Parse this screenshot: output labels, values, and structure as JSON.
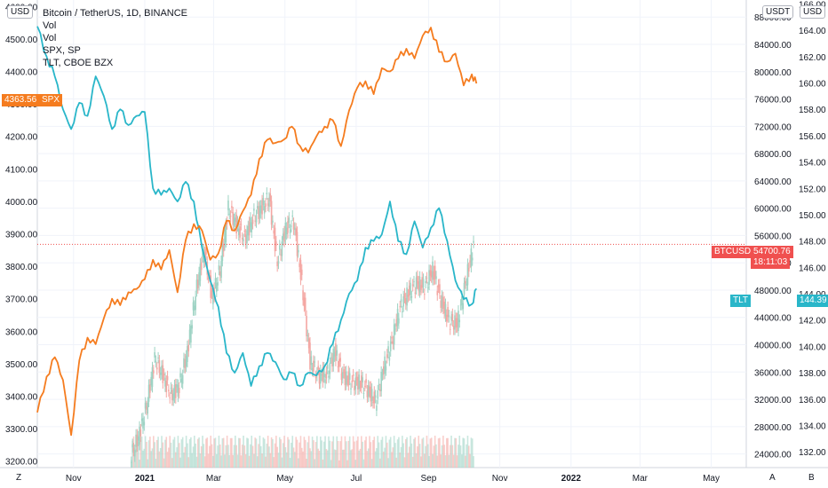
{
  "header": {
    "title": "Bitcoin / TetherUS, 1D, BINANCE",
    "legend": [
      "Vol",
      "Vol",
      "SPX, SP",
      "TLT, CBOE BZX"
    ],
    "left_currency": "USD",
    "right_currency": "USDT",
    "right2_currency": "USD"
  },
  "badges": {
    "spx_value": "4363.56",
    "spx_label": "SPX",
    "btc_label": "BTCUSDT",
    "btc_value": "54700.76",
    "btc_countdown": "18:11:03",
    "tlt_label": "TLT",
    "tlt_value": "144.39"
  },
  "bottom_bar": {
    "left": "Z",
    "mid": "A",
    "right": "B"
  },
  "colors": {
    "spx": "#f57c1f",
    "tlt": "#29b6c9",
    "candle_up": "#9ed3c4",
    "candle_down": "#f4a7a3",
    "btc_badge": "#f0504f",
    "spx_badge": "#f57c1f",
    "tlt_badge": "#29b6c9",
    "grid": "#f0f3fa"
  },
  "chart_data": {
    "type": "line",
    "x_tick_labels": [
      "Nov",
      "2021",
      "Mar",
      "May",
      "Jul",
      "Sep",
      "Nov",
      "2022",
      "Mar",
      "May"
    ],
    "x_start": "2020-10-01",
    "x_end": "2022-05-31",
    "left_axis": {
      "label": "SPX",
      "ticks": [
        "4600.00",
        "4500.00",
        "4400.00",
        "4300.00",
        "4200.00",
        "4100.00",
        "4000.00",
        "3900.00",
        "3800.00",
        "3700.00",
        "3600.00",
        "3500.00",
        "3400.00",
        "3300.00",
        "3200.00"
      ],
      "ylim": [
        3180,
        4620
      ]
    },
    "right_axis": {
      "label": "BTCUSDT",
      "ticks": [
        "88000.00",
        "84000.00",
        "80000.00",
        "76000.00",
        "72000.00",
        "68000.00",
        "64000.00",
        "60000.00",
        "56000.00",
        "52000.00",
        "48000.00",
        "44000.00",
        "40000.00",
        "36000.00",
        "32000.00",
        "28000.00",
        "24000.00"
      ],
      "ylim": [
        22000,
        90500
      ]
    },
    "right2_axis": {
      "label": "TLT",
      "ticks": [
        "166.00",
        "164.00",
        "162.00",
        "160.00",
        "158.00",
        "156.00",
        "154.00",
        "152.00",
        "150.00",
        "148.00",
        "146.00",
        "144.00",
        "142.00",
        "140.00",
        "138.00",
        "136.00",
        "134.00",
        "132.00"
      ],
      "ylim": [
        130.8,
        166.3
      ]
    },
    "series": [
      {
        "name": "SPX, SP",
        "axis": "left",
        "points": [
          [
            "2020-10-01",
            3350
          ],
          [
            "2020-10-09",
            3460
          ],
          [
            "2020-10-16",
            3520
          ],
          [
            "2020-10-23",
            3450
          ],
          [
            "2020-10-30",
            3280
          ],
          [
            "2020-11-06",
            3510
          ],
          [
            "2020-11-13",
            3580
          ],
          [
            "2020-11-20",
            3560
          ],
          [
            "2020-11-27",
            3640
          ],
          [
            "2020-12-04",
            3700
          ],
          [
            "2020-12-11",
            3680
          ],
          [
            "2020-12-18",
            3720
          ],
          [
            "2020-12-25",
            3730
          ],
          [
            "2021-01-01",
            3760
          ],
          [
            "2021-01-08",
            3820
          ],
          [
            "2021-01-15",
            3790
          ],
          [
            "2021-01-22",
            3850
          ],
          [
            "2021-01-29",
            3720
          ],
          [
            "2021-02-05",
            3880
          ],
          [
            "2021-02-12",
            3930
          ],
          [
            "2021-02-19",
            3910
          ],
          [
            "2021-02-26",
            3820
          ],
          [
            "2021-03-05",
            3840
          ],
          [
            "2021-03-12",
            3940
          ],
          [
            "2021-03-19",
            3910
          ],
          [
            "2021-03-26",
            3970
          ],
          [
            "2021-04-02",
            4020
          ],
          [
            "2021-04-09",
            4130
          ],
          [
            "2021-04-16",
            4190
          ],
          [
            "2021-04-23",
            4180
          ],
          [
            "2021-04-30",
            4190
          ],
          [
            "2021-05-07",
            4230
          ],
          [
            "2021-05-14",
            4170
          ],
          [
            "2021-05-21",
            4150
          ],
          [
            "2021-05-28",
            4200
          ],
          [
            "2021-06-04",
            4230
          ],
          [
            "2021-06-11",
            4250
          ],
          [
            "2021-06-18",
            4170
          ],
          [
            "2021-06-25",
            4280
          ],
          [
            "2021-07-02",
            4350
          ],
          [
            "2021-07-09",
            4370
          ],
          [
            "2021-07-16",
            4330
          ],
          [
            "2021-07-23",
            4410
          ],
          [
            "2021-07-30",
            4400
          ],
          [
            "2021-08-06",
            4440
          ],
          [
            "2021-08-13",
            4470
          ],
          [
            "2021-08-20",
            4440
          ],
          [
            "2021-08-27",
            4510
          ],
          [
            "2021-09-03",
            4535
          ],
          [
            "2021-09-10",
            4460
          ],
          [
            "2021-09-17",
            4430
          ],
          [
            "2021-09-24",
            4455
          ],
          [
            "2021-10-01",
            4357
          ],
          [
            "2021-10-08",
            4391
          ],
          [
            "2021-10-12",
            4363
          ]
        ]
      },
      {
        "name": "TLT, CBOE BZX",
        "axis": "right2",
        "points": [
          [
            "2020-10-01",
            164.3
          ],
          [
            "2020-10-09",
            162.0
          ],
          [
            "2020-10-16",
            160.5
          ],
          [
            "2020-10-23",
            158.0
          ],
          [
            "2020-10-30",
            156.5
          ],
          [
            "2020-11-06",
            158.5
          ],
          [
            "2020-11-13",
            157.5
          ],
          [
            "2020-11-20",
            160.5
          ],
          [
            "2020-11-27",
            159.0
          ],
          [
            "2020-12-04",
            156.5
          ],
          [
            "2020-12-11",
            158.0
          ],
          [
            "2020-12-18",
            156.8
          ],
          [
            "2020-12-25",
            157.5
          ],
          [
            "2021-01-01",
            157.8
          ],
          [
            "2021-01-08",
            152.0
          ],
          [
            "2021-01-15",
            151.5
          ],
          [
            "2021-01-22",
            152.0
          ],
          [
            "2021-01-29",
            151.0
          ],
          [
            "2021-02-05",
            152.5
          ],
          [
            "2021-02-12",
            151.0
          ],
          [
            "2021-02-19",
            147.5
          ],
          [
            "2021-02-26",
            145.0
          ],
          [
            "2021-03-05",
            143.0
          ],
          [
            "2021-03-12",
            139.5
          ],
          [
            "2021-03-19",
            138.0
          ],
          [
            "2021-03-26",
            139.5
          ],
          [
            "2021-04-02",
            137.0
          ],
          [
            "2021-04-09",
            138.5
          ],
          [
            "2021-04-16",
            139.5
          ],
          [
            "2021-04-23",
            138.8
          ],
          [
            "2021-04-30",
            137.5
          ],
          [
            "2021-05-07",
            138.0
          ],
          [
            "2021-05-14",
            137.0
          ],
          [
            "2021-05-21",
            138.0
          ],
          [
            "2021-05-28",
            137.8
          ],
          [
            "2021-06-04",
            138.5
          ],
          [
            "2021-06-11",
            140.2
          ],
          [
            "2021-06-18",
            142.0
          ],
          [
            "2021-06-25",
            144.0
          ],
          [
            "2021-07-02",
            145.0
          ],
          [
            "2021-07-09",
            147.5
          ],
          [
            "2021-07-16",
            148.0
          ],
          [
            "2021-07-23",
            148.5
          ],
          [
            "2021-07-30",
            151.0
          ],
          [
            "2021-08-06",
            148.0
          ],
          [
            "2021-08-13",
            147.0
          ],
          [
            "2021-08-20",
            149.5
          ],
          [
            "2021-08-27",
            147.5
          ],
          [
            "2021-09-03",
            149.0
          ],
          [
            "2021-09-10",
            150.5
          ],
          [
            "2021-09-17",
            148.0
          ],
          [
            "2021-09-24",
            145.0
          ],
          [
            "2021-10-01",
            143.6
          ],
          [
            "2021-10-08",
            143.2
          ],
          [
            "2021-10-12",
            144.39
          ]
        ]
      },
      {
        "name": "BTCUSDT",
        "axis": "right",
        "type": "candlestick_close",
        "points": [
          [
            "2020-12-20",
            23500
          ],
          [
            "2020-12-27",
            26500
          ],
          [
            "2021-01-03",
            31000
          ],
          [
            "2021-01-10",
            38000
          ],
          [
            "2021-01-17",
            35500
          ],
          [
            "2021-01-24",
            32500
          ],
          [
            "2021-01-31",
            34000
          ],
          [
            "2021-02-07",
            39000
          ],
          [
            "2021-02-14",
            47500
          ],
          [
            "2021-02-21",
            54000
          ],
          [
            "2021-02-28",
            47000
          ],
          [
            "2021-03-07",
            51000
          ],
          [
            "2021-03-14",
            60000
          ],
          [
            "2021-03-21",
            57500
          ],
          [
            "2021-03-28",
            55500
          ],
          [
            "2021-04-04",
            58500
          ],
          [
            "2021-04-11",
            60000
          ],
          [
            "2021-04-18",
            61500
          ],
          [
            "2021-04-25",
            52000
          ],
          [
            "2021-05-02",
            57000
          ],
          [
            "2021-05-09",
            58000
          ],
          [
            "2021-05-16",
            49000
          ],
          [
            "2021-05-23",
            37500
          ],
          [
            "2021-05-30",
            35500
          ],
          [
            "2021-06-06",
            35500
          ],
          [
            "2021-06-13",
            39000
          ],
          [
            "2021-06-20",
            35500
          ],
          [
            "2021-06-27",
            34500
          ],
          [
            "2021-07-04",
            34500
          ],
          [
            "2021-07-11",
            33500
          ],
          [
            "2021-07-18",
            31500
          ],
          [
            "2021-07-25",
            36500
          ],
          [
            "2021-08-01",
            40500
          ],
          [
            "2021-08-08",
            45500
          ],
          [
            "2021-08-15",
            47500
          ],
          [
            "2021-08-22",
            49000
          ],
          [
            "2021-08-29",
            48500
          ],
          [
            "2021-09-05",
            51000
          ],
          [
            "2021-09-12",
            46500
          ],
          [
            "2021-09-19",
            43500
          ],
          [
            "2021-09-26",
            43000
          ],
          [
            "2021-10-03",
            49000
          ],
          [
            "2021-10-10",
            54700.76
          ]
        ]
      }
    ]
  }
}
